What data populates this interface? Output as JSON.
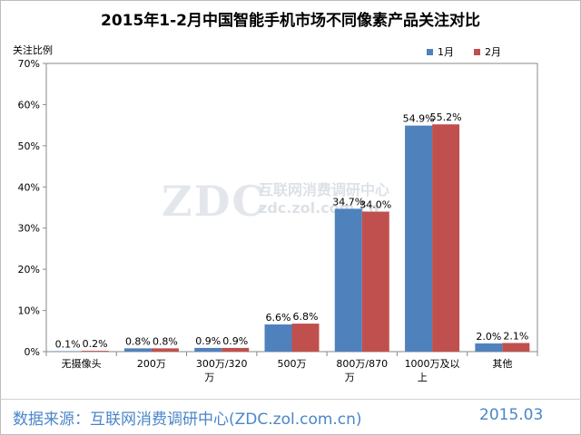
{
  "chart_data": {
    "type": "bar",
    "title": "2015年1-2月中国智能手机市场不同像素产品关注对比",
    "ylabel": "关注比例",
    "ylim": [
      0,
      70
    ],
    "yticks": [
      "0%",
      "10%",
      "20%",
      "30%",
      "40%",
      "50%",
      "60%",
      "70%"
    ],
    "categories": [
      "无摄像头",
      "200万",
      "300万/320万",
      "500万",
      "800万/870万",
      "1000万及以上",
      "其他"
    ],
    "category_lines": [
      [
        "无摄像头"
      ],
      [
        "200万"
      ],
      [
        "300万/320",
        "万"
      ],
      [
        "500万"
      ],
      [
        "800万/870",
        "万"
      ],
      [
        "1000万及以",
        "上"
      ],
      [
        "其他"
      ]
    ],
    "series": [
      {
        "name": "1月",
        "color": "#4f81bd",
        "values": [
          0.1,
          0.8,
          0.9,
          6.6,
          34.7,
          54.9,
          2.0
        ],
        "labels": [
          "0.1%",
          "0.8%",
          "0.9%",
          "6.6%",
          "34.7%",
          "54.9%",
          "2.0%"
        ]
      },
      {
        "name": "2月",
        "color": "#c0504d",
        "values": [
          0.2,
          0.8,
          0.9,
          6.8,
          34.0,
          55.2,
          2.1
        ],
        "labels": [
          "0.2%",
          "0.8%",
          "0.9%",
          "6.8%",
          "34.0%",
          "55.2%",
          "2.1%"
        ]
      }
    ],
    "grid": false,
    "legend": "top-right"
  },
  "watermark": {
    "logo": "ZDC",
    "line1": "互联网消费调研中心",
    "line2": "zdc.zol.com.cn"
  },
  "footer": {
    "source": "数据来源：互联网消费调研中心(ZDC.zol.com.cn)",
    "date": "2015.03"
  }
}
